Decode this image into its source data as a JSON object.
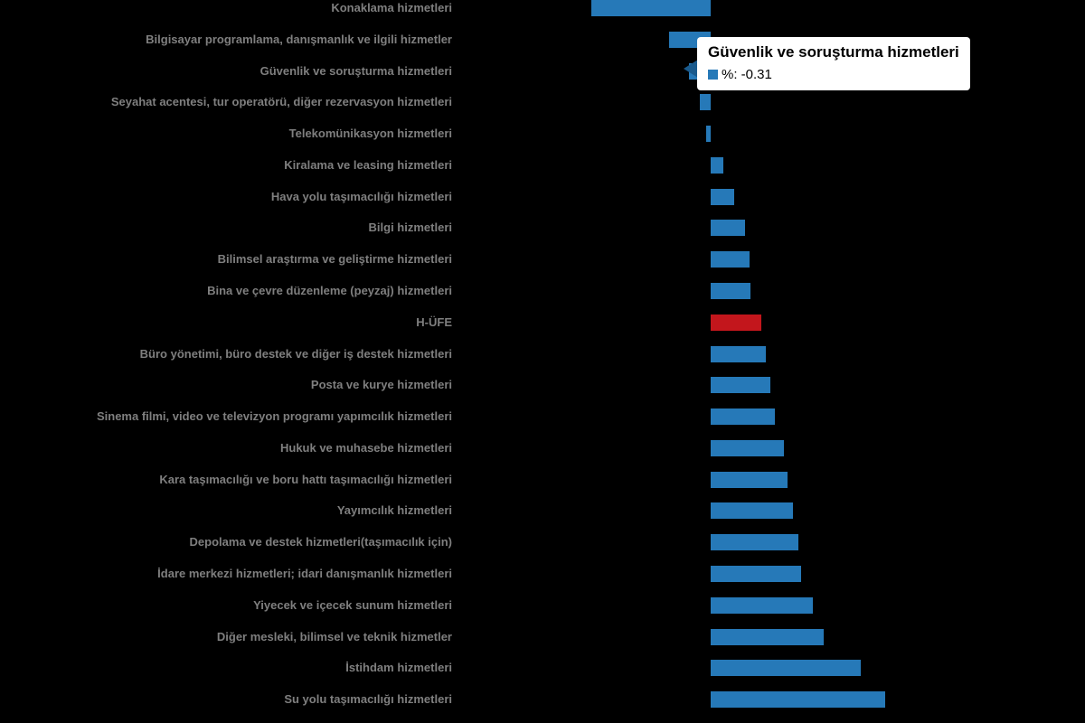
{
  "colors": {
    "background": "#000000",
    "bar": "#2679b8",
    "highlight": "#c3161c",
    "label": "#7f7f7f",
    "tooltip_arrow": "#1a5a8c"
  },
  "chart_data": {
    "type": "bar",
    "orientation": "horizontal",
    "title": "",
    "xlabel": "",
    "ylabel": "",
    "xlim": [
      -2.0,
      3.0
    ],
    "grid": false,
    "legend": false,
    "series_name": "%",
    "highlight_category": "H-ÜFE",
    "categories": [
      "Konaklama hizmetleri",
      "Bilgisayar programlama, danışmanlık ve ilgili hizmetler",
      "Güvenlik ve soruşturma hizmetleri",
      "Seyahat acentesi, tur operatörü, diğer rezervasyon hizmetleri",
      "Telekomünikasyon hizmetleri",
      "Kiralama ve leasing hizmetleri",
      "Hava yolu taşımacılığı hizmetleri",
      "Bilgi hizmetleri",
      "Bilimsel araştırma ve geliştirme hizmetleri",
      "Bina ve çevre düzenleme (peyzaj) hizmetleri",
      "H-ÜFE",
      "Büro yönetimi, büro destek ve diğer iş destek hizmetleri",
      "Posta ve kurye hizmetleri",
      "Sinema filmi, video ve televizyon programı yapımcılık hizmetleri",
      "Hukuk ve muhasebe hizmetleri",
      "Kara taşımacılığı ve boru hattı taşımacılığı hizmetleri",
      "Yayımcılık hizmetleri",
      "Depolama ve destek hizmetleri(taşımacılık için)",
      "İdare merkezi hizmetleri; idari danışmanlık hizmetleri",
      "Yiyecek ve içecek sunum hizmetleri",
      "Diğer mesleki, bilimsel ve teknik hizmetler",
      "İstihdam hizmetleri",
      "Su yolu taşımacılığı hizmetleri"
    ],
    "values": [
      -1.7,
      -0.6,
      -0.31,
      -0.15,
      -0.06,
      0.18,
      0.34,
      0.49,
      0.55,
      0.57,
      0.72,
      0.79,
      0.85,
      0.92,
      1.05,
      1.1,
      1.17,
      1.25,
      1.29,
      1.46,
      1.61,
      2.14,
      2.49
    ]
  },
  "tooltip": {
    "title": "Güvenlik ve soruşturma hizmetleri",
    "value_text": "%: -0.31",
    "marker_color": "#2679b8"
  }
}
